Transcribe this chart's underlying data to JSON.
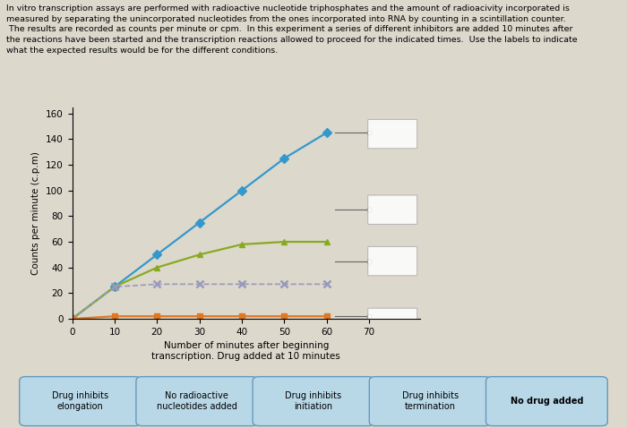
{
  "xlabel": "Number of minutes after beginning\ntranscription. Drug added at 10 minutes",
  "ylabel": "Counts per minute (c.p.m)",
  "xlim": [
    0,
    80
  ],
  "ylim": [
    0,
    165
  ],
  "yticks": [
    0,
    20,
    40,
    60,
    80,
    100,
    120,
    140,
    160
  ],
  "xticks": [
    0,
    10,
    20,
    30,
    40,
    50,
    60,
    70
  ],
  "line_no_drug": {
    "x": [
      0,
      10,
      20,
      30,
      40,
      50,
      60
    ],
    "y": [
      0,
      25,
      50,
      75,
      100,
      125,
      145
    ],
    "color": "#3399cc",
    "marker": "D",
    "markersize": 5
  },
  "line_inhib_initiation": {
    "x": [
      0,
      10,
      20,
      30,
      40,
      50,
      60
    ],
    "y": [
      0,
      25,
      40,
      50,
      58,
      60,
      60
    ],
    "color": "#88aa22",
    "marker": "^",
    "markersize": 5
  },
  "line_inhib_elongation": {
    "x": [
      0,
      10,
      20,
      30,
      40,
      50,
      60
    ],
    "y": [
      0,
      25,
      27,
      27,
      27,
      27,
      27
    ],
    "color": "#9999bb",
    "marker": "x",
    "markersize": 6
  },
  "line_no_radioactive": {
    "x": [
      0,
      10,
      20,
      30,
      40,
      50,
      60
    ],
    "y": [
      0,
      2,
      2,
      2,
      2,
      2,
      2
    ],
    "color": "#e07722",
    "marker": "s",
    "markersize": 5
  },
  "label_buttons": [
    {
      "text": "Drug inhibits\nelongation",
      "color": "#b8d8e8",
      "bold": false
    },
    {
      "text": "No radioactive\nnucleotides added",
      "color": "#b8d8e8",
      "bold": false
    },
    {
      "text": "Drug inhibits\ninitiation",
      "color": "#b8d8e8",
      "bold": false
    },
    {
      "text": "Drug inhibits\ntermination",
      "color": "#b8d8e8",
      "bold": false
    },
    {
      "text": "No drug added",
      "color": "#b8d8e8",
      "bold": true
    }
  ],
  "bg_color": "#ddd8cc",
  "text_content": "In vitro transcription assays are performed with radioactive nucleotide triphosphates and the amount of radioacivity incorporated is\nmeasured by separating the unincorporated nucleotides from the ones incorporated into RNA by counting in a scintillation counter.\n The results are recorded as counts per minute or cpm.  In this experiment a series of different inhibitors are added 10 minutes after\nthe reactions have been started and the transcription reactions allowed to proceed for the indicated times.  Use the labels to indicate\nwhat the expected results would be for the different conditions."
}
